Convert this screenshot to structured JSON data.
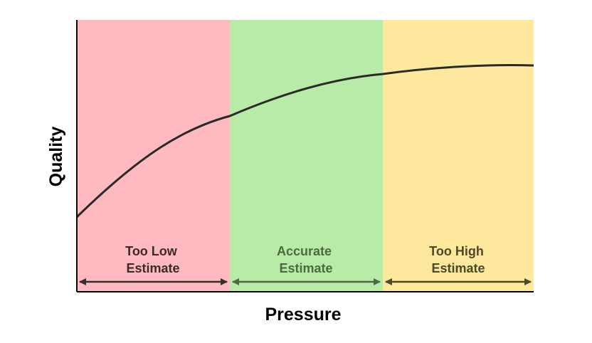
{
  "diagram": {
    "x_axis_label": "Pressure",
    "y_axis_label": "Quality",
    "zones": [
      {
        "line1": "Too Low",
        "line2": "Estimate",
        "fill": "#FFBAC1",
        "text_color": "#3A2A2A",
        "arrow_color": "#3A2A2A"
      },
      {
        "line1": "Accurate",
        "line2": "Estimate",
        "fill": "#B9EBA8",
        "text_color": "#4B6B3F",
        "arrow_color": "#4B6B3F"
      },
      {
        "line1": "Too High",
        "line2": "Estimate",
        "fill": "#FDE89E",
        "text_color": "#4A4A25",
        "arrow_color": "#4A4A25"
      }
    ],
    "curve_color": "#2A2A2A",
    "axis_color": "#000000"
  }
}
